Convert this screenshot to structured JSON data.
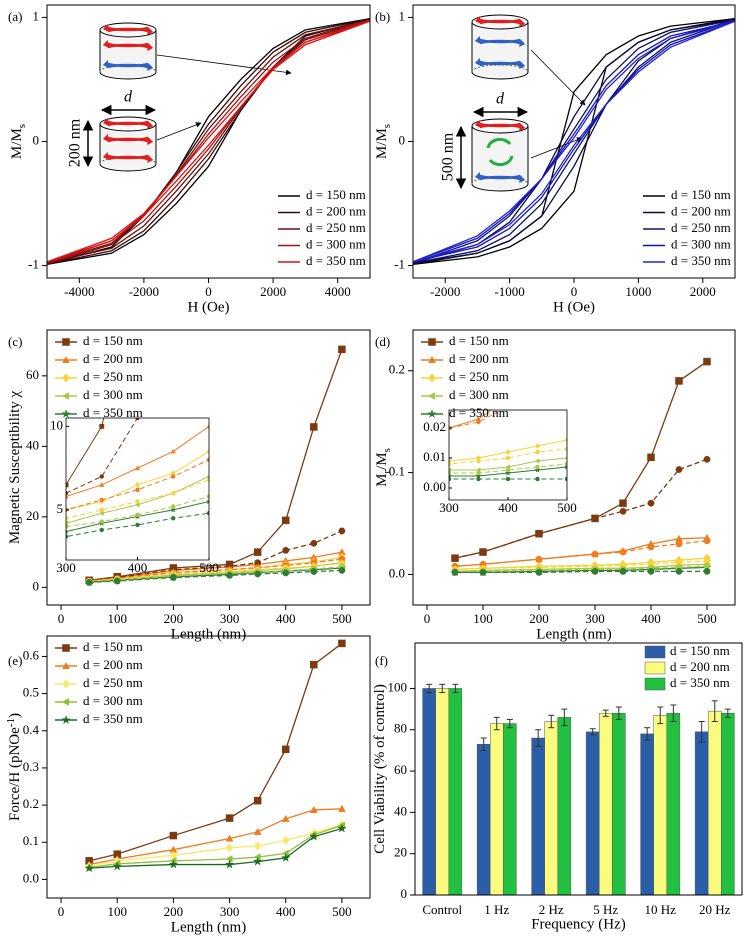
{
  "chart_data": [
    {
      "type": "line",
      "label": "(a)",
      "xlabel": "H (Oe)",
      "ylabel": [
        {
          "text": "M/M"
        },
        {
          "text": "s",
          "sub": true
        }
      ],
      "x": [
        5000,
        3000,
        2000,
        1000,
        0,
        -1000,
        -2000,
        -3000,
        -5000,
        -3000,
        -2000,
        -1000,
        0,
        1000,
        2000,
        3000,
        5000
      ],
      "xlim": [
        -5000,
        5000
      ],
      "ylim": [
        -1.1,
        1.1
      ],
      "xticks": [
        -4000,
        -2000,
        0,
        2000,
        4000
      ],
      "yticks": [
        -1,
        0,
        1
      ],
      "legend": "lower right",
      "annotations": [
        "d",
        "200 nm"
      ],
      "series": [
        {
          "name": "d = 150 nm",
          "color": "#000000",
          "values": [
            0.99,
            0.9,
            0.75,
            0.5,
            0.2,
            -0.25,
            -0.6,
            -0.85,
            -0.99,
            -0.9,
            -0.75,
            -0.5,
            -0.2,
            0.25,
            0.6,
            0.85,
            0.99
          ]
        },
        {
          "name": "d = 200 nm",
          "color": "#3a0a0a",
          "values": [
            0.99,
            0.88,
            0.72,
            0.45,
            0.14,
            -0.25,
            -0.6,
            -0.83,
            -0.99,
            -0.88,
            -0.72,
            -0.45,
            -0.14,
            0.25,
            0.6,
            0.83,
            0.99
          ]
        },
        {
          "name": "d = 250 nm",
          "color": "#6b1010",
          "values": [
            0.98,
            0.86,
            0.68,
            0.4,
            0.1,
            -0.27,
            -0.6,
            -0.82,
            -0.98,
            -0.86,
            -0.68,
            -0.4,
            -0.1,
            0.27,
            0.6,
            0.82,
            0.98
          ]
        },
        {
          "name": "d = 300 nm",
          "color": "#a01515",
          "values": [
            0.98,
            0.83,
            0.64,
            0.36,
            0.06,
            -0.28,
            -0.59,
            -0.8,
            -0.98,
            -0.83,
            -0.64,
            -0.36,
            -0.06,
            0.28,
            0.59,
            0.8,
            0.98
          ]
        },
        {
          "name": "d = 350 nm",
          "color": "#e01010",
          "values": [
            0.97,
            0.8,
            0.6,
            0.32,
            0.03,
            -0.28,
            -0.58,
            -0.78,
            -0.97,
            -0.8,
            -0.6,
            -0.32,
            -0.03,
            0.28,
            0.58,
            0.78,
            0.97
          ]
        }
      ]
    },
    {
      "type": "line",
      "label": "(b)",
      "xlabel": "H (Oe)",
      "ylabel": [
        {
          "text": "M/M"
        },
        {
          "text": "s",
          "sub": true
        }
      ],
      "x": [
        2500,
        1500,
        1000,
        500,
        0,
        -500,
        -1000,
        -1500,
        -2500,
        -1500,
        -1000,
        -500,
        0,
        500,
        1000,
        1500,
        2500
      ],
      "xlim": [
        -2500,
        2500
      ],
      "ylim": [
        -1.1,
        1.1
      ],
      "xticks": [
        -2000,
        -1000,
        0,
        1000,
        2000
      ],
      "yticks": [
        -1,
        0,
        1
      ],
      "legend": "lower right",
      "annotations": [
        "d",
        "500 nm"
      ],
      "series": [
        {
          "name": "d = 150 nm",
          "color": "#000000",
          "values": [
            0.99,
            0.93,
            0.85,
            0.7,
            0.4,
            -0.6,
            -0.8,
            -0.9,
            -0.99,
            -0.93,
            -0.85,
            -0.7,
            -0.4,
            0.6,
            0.8,
            0.9,
            0.99
          ]
        },
        {
          "name": "d = 200 nm",
          "color": "#0a0a40",
          "values": [
            0.98,
            0.9,
            0.8,
            0.6,
            0.2,
            -0.3,
            -0.65,
            -0.83,
            -0.98,
            -0.9,
            -0.8,
            -0.6,
            -0.2,
            0.3,
            0.65,
            0.83,
            0.98
          ]
        },
        {
          "name": "d = 250 nm",
          "color": "#101070",
          "values": [
            0.98,
            0.88,
            0.75,
            0.5,
            0.1,
            -0.3,
            -0.6,
            -0.8,
            -0.98,
            -0.88,
            -0.75,
            -0.5,
            -0.1,
            0.3,
            0.6,
            0.8,
            0.98
          ]
        },
        {
          "name": "d = 300 nm",
          "color": "#1515b0",
          "values": [
            0.97,
            0.85,
            0.7,
            0.45,
            0.06,
            -0.3,
            -0.58,
            -0.78,
            -0.97,
            -0.85,
            -0.7,
            -0.45,
            -0.06,
            0.3,
            0.58,
            0.78,
            0.97
          ]
        },
        {
          "name": "d = 350 nm",
          "color": "#2020e0",
          "values": [
            0.97,
            0.83,
            0.67,
            0.42,
            0.03,
            -0.3,
            -0.56,
            -0.76,
            -0.97,
            -0.83,
            -0.67,
            -0.42,
            -0.03,
            0.3,
            0.56,
            0.76,
            0.97
          ]
        }
      ]
    },
    {
      "type": "line",
      "label": "(c)",
      "xlabel": "Length (nm)",
      "ylabel": [
        {
          "text": "Magnetic Susceptibility χ"
        }
      ],
      "x": [
        50,
        100,
        200,
        300,
        350,
        400,
        450,
        500
      ],
      "xlim": [
        -25,
        550
      ],
      "ylim": [
        -5,
        73
      ],
      "xticks": [
        0,
        100,
        200,
        300,
        400,
        500
      ],
      "yticks": [
        0,
        20,
        40,
        60
      ],
      "legend": "upper left",
      "inset": {
        "xlim": [
          300,
          500
        ],
        "ylim": [
          2,
          10.5
        ],
        "xticks": [
          300,
          400,
          500
        ],
        "yticks": [
          5,
          10
        ]
      },
      "series": [
        {
          "name": "d = 150 nm",
          "color": "#7b3a10",
          "marker": "square",
          "values": [
            2,
            3,
            5.5,
            6.5,
            10,
            19,
            45.5,
            67.5
          ]
        },
        {
          "name": "d = 200 nm",
          "color": "#f07c20",
          "marker": "triangle",
          "values": [
            1.8,
            2.7,
            4.8,
            5.8,
            6.5,
            7.5,
            8.5,
            10
          ]
        },
        {
          "name": "d = 250 nm",
          "color": "#f7d43a",
          "marker": "diamond",
          "values": [
            1.7,
            2.5,
            4.2,
            5,
            5.5,
            6.5,
            7.2,
            8.5
          ]
        },
        {
          "name": "d = 300 nm",
          "color": "#a8c84a",
          "marker": "triangle-left",
          "values": [
            1.6,
            2.2,
            3.5,
            4.2,
            4.8,
            5.3,
            6,
            7
          ]
        },
        {
          "name": "d = 350 nm",
          "color": "#2e7d32",
          "marker": "star",
          "values": [
            1.5,
            2,
            3,
            3.7,
            4.2,
            4.6,
            5,
            5.5
          ]
        },
        {
          "color": "#7b3a10",
          "marker": "circle",
          "dashed": true,
          "values": [
            2,
            2.8,
            5,
            6,
            7,
            10.5,
            12.5,
            16
          ]
        },
        {
          "color": "#f07c20",
          "marker": "circle",
          "dashed": true,
          "values": [
            1.8,
            2.5,
            4.2,
            5,
            5.6,
            6.2,
            7,
            8
          ]
        },
        {
          "color": "#f7d43a",
          "marker": "circle",
          "dashed": true,
          "values": [
            1.7,
            2.3,
            3.8,
            4.5,
            5,
            5.5,
            6,
            6.8
          ]
        },
        {
          "color": "#a8c84a",
          "marker": "circle",
          "dashed": true,
          "values": [
            1.5,
            2,
            3.2,
            4,
            4.3,
            4.7,
            5.2,
            5.8
          ]
        },
        {
          "color": "#2e7d32",
          "marker": "circle",
          "dashed": true,
          "values": [
            1.4,
            1.8,
            2.8,
            3.4,
            3.8,
            4.1,
            4.5,
            4.8
          ]
        }
      ]
    },
    {
      "type": "line",
      "label": "(d)",
      "xlabel": "Length (nm)",
      "ylabel": [
        {
          "text": "M"
        },
        {
          "text": "r",
          "sub": true
        },
        {
          "text": "/M"
        },
        {
          "text": "s",
          "sub": true
        }
      ],
      "x": [
        50,
        100,
        200,
        300,
        350,
        400,
        450,
        500
      ],
      "xlim": [
        -25,
        550
      ],
      "ylim": [
        -0.03,
        0.24
      ],
      "xticks": [
        0,
        100,
        200,
        300,
        400,
        500
      ],
      "yticks": [
        {
          "value": 0,
          "label": "0.0"
        },
        0.1,
        0.2
      ],
      "legend": "upper left",
      "inset": {
        "xlim": [
          300,
          500
        ],
        "ylim": [
          -0.004,
          0.026
        ],
        "xticks": [
          300,
          400,
          500
        ],
        "yticks": [
          {
            "value": 0,
            "label": "0.00"
          },
          0.01,
          0.02
        ]
      },
      "series": [
        {
          "name": "d = 150 nm",
          "color": "#7b3a10",
          "marker": "square",
          "values": [
            0.016,
            0.022,
            0.04,
            0.055,
            0.07,
            0.115,
            0.19,
            0.209
          ]
        },
        {
          "name": "d = 200 nm",
          "color": "#f07c20",
          "marker": "triangle",
          "values": [
            0.008,
            0.01,
            0.015,
            0.02,
            0.023,
            0.03,
            0.035,
            0.036
          ]
        },
        {
          "name": "d = 250 nm",
          "color": "#f7d43a",
          "marker": "diamond",
          "values": [
            0.005,
            0.006,
            0.008,
            0.009,
            0.01,
            0.012,
            0.014,
            0.016
          ]
        },
        {
          "name": "d = 300 nm",
          "color": "#a8c84a",
          "marker": "triangle-left",
          "values": [
            0.003,
            0.004,
            0.005,
            0.006,
            0.006,
            0.007,
            0.009,
            0.01
          ]
        },
        {
          "name": "d = 350 nm",
          "color": "#2e7d32",
          "marker": "star",
          "values": [
            0.002,
            0.002,
            0.003,
            0.004,
            0.004,
            0.005,
            0.006,
            0.007
          ]
        },
        {
          "color": "#7b3a10",
          "marker": "circle",
          "dashed": true,
          "values": [
            0.016,
            0.022,
            0.04,
            0.055,
            0.062,
            0.07,
            0.103,
            0.113
          ]
        },
        {
          "color": "#f07c20",
          "marker": "circle",
          "dashed": true,
          "values": [
            0.008,
            0.01,
            0.015,
            0.02,
            0.022,
            0.027,
            0.03,
            0.033
          ]
        },
        {
          "color": "#f7d43a",
          "marker": "circle",
          "dashed": true,
          "values": [
            0.005,
            0.006,
            0.007,
            0.008,
            0.009,
            0.01,
            0.012,
            0.013
          ]
        },
        {
          "color": "#a8c84a",
          "marker": "circle",
          "dashed": true,
          "values": [
            0.003,
            0.003,
            0.004,
            0.005,
            0.005,
            0.006,
            0.007,
            0.008
          ]
        },
        {
          "color": "#2e7d32",
          "marker": "circle",
          "dashed": true,
          "values": [
            0.002,
            0.002,
            0.002,
            0.003,
            0.003,
            0.003,
            0.003,
            0.003
          ]
        }
      ]
    },
    {
      "type": "line",
      "label": "(e)",
      "xlabel": "Length (nm)",
      "ylabel": [
        {
          "text": "Force/H (pNOe"
        },
        {
          "text": "-1",
          "sup": true
        },
        {
          "text": ")"
        }
      ],
      "x": [
        50,
        100,
        200,
        300,
        350,
        400,
        450,
        500
      ],
      "xlim": [
        -25,
        550
      ],
      "ylim": [
        -0.05,
        0.655
      ],
      "xticks": [
        0,
        100,
        200,
        300,
        400,
        500
      ],
      "yticks": [
        {
          "value": 0,
          "label": "0.0"
        },
        0.1,
        0.2,
        0.3,
        0.4,
        0.5,
        0.6
      ],
      "legend": "upper left",
      "series": [
        {
          "name": "d = 150 nm",
          "color": "#7b3a10",
          "marker": "square",
          "values": [
            0.05,
            0.068,
            0.118,
            0.165,
            0.212,
            0.35,
            0.578,
            0.635
          ]
        },
        {
          "name": "d = 200 nm",
          "color": "#f07c20",
          "marker": "triangle",
          "values": [
            0.04,
            0.055,
            0.08,
            0.11,
            0.128,
            0.163,
            0.187,
            0.19
          ]
        },
        {
          "name": "d = 250 nm",
          "color": "#f7e96a",
          "marker": "diamond",
          "values": [
            0.035,
            0.05,
            0.065,
            0.085,
            0.09,
            0.105,
            0.125,
            0.148
          ]
        },
        {
          "name": "d = 300 nm",
          "color": "#8fbf3a",
          "marker": "triangle-left",
          "values": [
            0.032,
            0.042,
            0.05,
            0.055,
            0.06,
            0.07,
            0.12,
            0.145
          ]
        },
        {
          "name": "d = 350 nm",
          "color": "#1e6b22",
          "marker": "star",
          "values": [
            0.03,
            0.035,
            0.04,
            0.04,
            0.048,
            0.058,
            0.115,
            0.137
          ]
        }
      ]
    },
    {
      "type": "bar",
      "label": "(f)",
      "xlabel": "Frequency (Hz)",
      "ylabel": [
        {
          "text": "Cell Viability (% of control)"
        }
      ],
      "categories": [
        "Control",
        "1 Hz",
        "2 Hz",
        "5 Hz",
        "10 Hz",
        "20 Hz"
      ],
      "ylim": [
        0,
        122
      ],
      "yticks": [
        0,
        20,
        40,
        60,
        80,
        100
      ],
      "legend": "upper right",
      "series": [
        {
          "name": "d = 150 nm",
          "color": "#2a5ea8",
          "values": [
            100,
            73,
            76,
            79,
            78,
            79
          ],
          "errors": [
            2,
            3,
            4,
            1.5,
            3,
            5
          ]
        },
        {
          "name": "d = 200 nm",
          "color": "#fbfb80",
          "values": [
            100,
            83,
            84,
            88,
            87,
            89
          ],
          "errors": [
            2,
            3,
            3,
            1.5,
            4,
            5
          ]
        },
        {
          "name": "d = 350 nm",
          "color": "#22c040",
          "values": [
            100,
            83,
            86,
            88,
            88,
            88
          ],
          "errors": [
            2,
            2,
            4,
            3,
            4,
            2
          ]
        }
      ]
    }
  ]
}
